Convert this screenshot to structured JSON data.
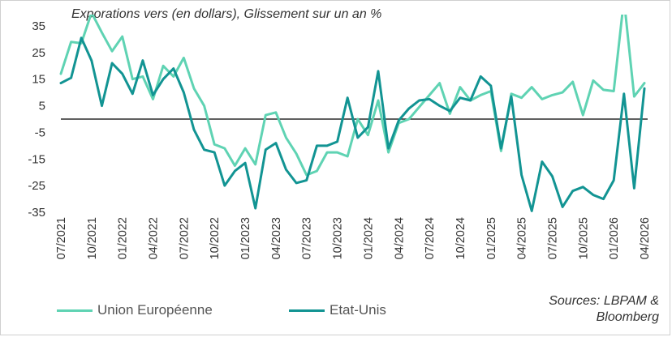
{
  "chart_data": {
    "type": "line",
    "title": "Exporations vers (en dollars), Glissement sur un an %",
    "ylim": [
      -35,
      35
    ],
    "yticks": [
      35,
      25,
      15,
      5,
      -5,
      -15,
      -25,
      -35
    ],
    "grid": false,
    "legend_placement": "bottom",
    "xticks": [
      "07/2021",
      "10/2021",
      "01/2022",
      "04/2022",
      "07/2022",
      "10/2022",
      "01/2023",
      "04/2023",
      "07/2023",
      "10/2023",
      "01/2024",
      "04/2024",
      "07/2024",
      "10/2024",
      "01/2025",
      "04/2025",
      "07/2025",
      "10/2025",
      "01/2026",
      "04/2026"
    ],
    "x": [
      "07/2021",
      "08/2021",
      "09/2021",
      "10/2021",
      "11/2021",
      "12/2021",
      "01/2022",
      "02/2022",
      "03/2022",
      "04/2022",
      "05/2022",
      "06/2022",
      "07/2022",
      "08/2022",
      "09/2022",
      "10/2022",
      "11/2022",
      "12/2022",
      "01/2023",
      "02/2023",
      "03/2023",
      "04/2023",
      "05/2023",
      "06/2023",
      "07/2023",
      "08/2023",
      "09/2023",
      "10/2023",
      "11/2023",
      "12/2023",
      "01/2024",
      "02/2024",
      "03/2024",
      "04/2024",
      "05/2024",
      "06/2024",
      "07/2024",
      "08/2024",
      "09/2024",
      "10/2024",
      "11/2024",
      "12/2024",
      "01/2025",
      "02/2025",
      "03/2025",
      "04/2025",
      "05/2025",
      "06/2025",
      "07/2025",
      "08/2025",
      "09/2025",
      "10/2025",
      "11/2025",
      "12/2025",
      "01/2026",
      "02/2026",
      "03/2026",
      "04/2026"
    ],
    "series": [
      {
        "name": "Union Européenne",
        "color": "#5fd3b3",
        "values": [
          17,
          29,
          28.5,
          40,
          32.5,
          25.5,
          31,
          15,
          16,
          7.5,
          20,
          16,
          23,
          11.5,
          5,
          -9.5,
          -11,
          -17.5,
          -11,
          -17,
          1.5,
          2.5,
          -7,
          -13,
          -21,
          -19.5,
          -12.5,
          -12.5,
          -14,
          0,
          -6,
          7,
          -12.5,
          -1.5,
          0,
          4.5,
          9,
          13.5,
          2,
          12,
          7,
          9,
          10.5,
          -12,
          9.5,
          8,
          12,
          7.5,
          9,
          10,
          14,
          1.5,
          14.5,
          11,
          10.5,
          45,
          8.5,
          13.5
        ]
      },
      {
        "name": "Etat-Unis",
        "color": "#129493",
        "values": [
          13.5,
          15.5,
          30.5,
          22,
          5,
          21,
          17,
          9.5,
          22,
          9,
          15,
          19,
          10,
          -4,
          -11.5,
          -12.5,
          -25,
          -19.5,
          -16.5,
          -33.5,
          -11.5,
          -9,
          -19,
          -24,
          -23,
          -10,
          -10,
          -8.5,
          8,
          -7,
          -3,
          18,
          -11,
          -0.5,
          4,
          7,
          7.5,
          5,
          3,
          8,
          7,
          16,
          12.5,
          -11,
          8.5,
          -21,
          -34.5,
          -16,
          -21.5,
          -33,
          -27,
          -25.5,
          -28.5,
          -30,
          -23,
          9.5,
          -26,
          11.5
        ]
      }
    ]
  },
  "legend": {
    "eu_label": "Union Européenne",
    "us_label": "Etat-Unis"
  },
  "source": {
    "line1": "Sources: LBPAM &",
    "line2": "Bloomberg"
  }
}
